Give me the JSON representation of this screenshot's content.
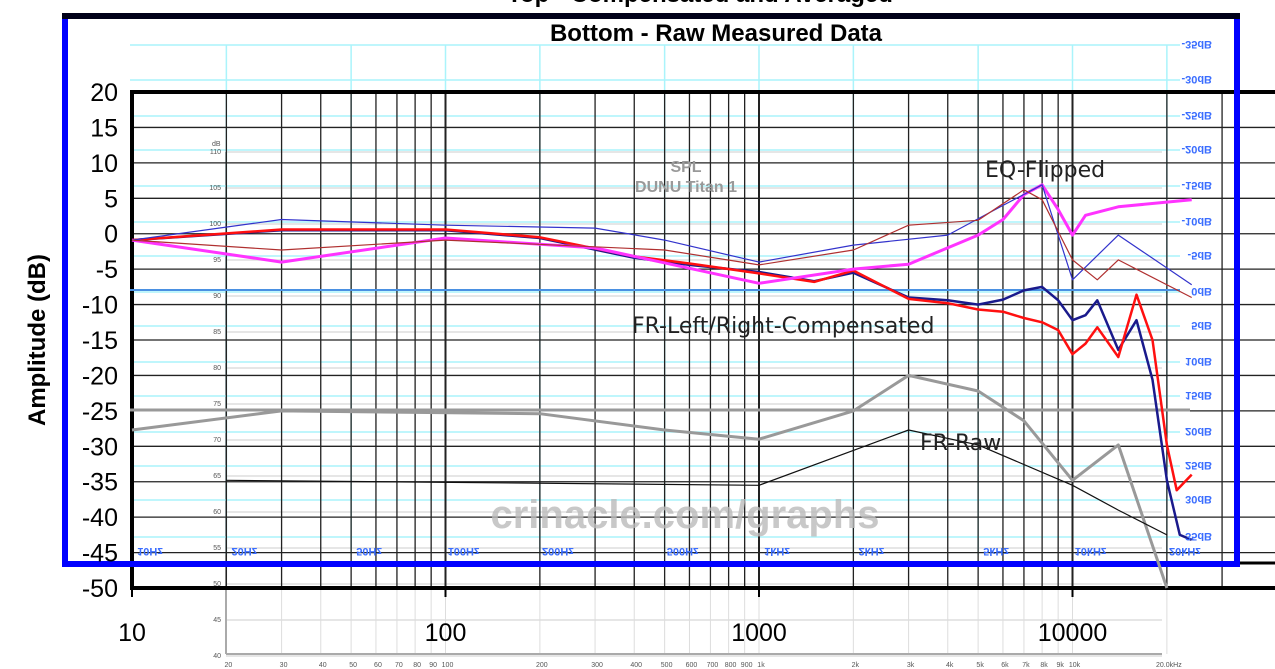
{
  "chart_data": {
    "type": "line",
    "title_lines": [
      "Top - Compensated and Averaged",
      "Bottom - Raw Measured Data"
    ],
    "xlabel": "",
    "ylabel": "Amplitude (dB)",
    "x_scale": "log",
    "xlim": [
      10,
      25000
    ],
    "ylim": [
      -50,
      20
    ],
    "x_ticks": [
      "10",
      "100",
      "1000",
      "10000"
    ],
    "y_ticks": [
      "20",
      "15",
      "10",
      "5",
      "0",
      "-5",
      "-10",
      "-15",
      "-20",
      "-25",
      "-30",
      "-35",
      "-40",
      "-45",
      "-50"
    ],
    "grid": true,
    "annotations": [
      "EQ-Flipped",
      "FR-Left/Right-Compensated",
      "FR-Raw"
    ],
    "watermark": "crinacle.com/graphs",
    "inset_chart": {
      "title": "SPL",
      "subtitle": "DUNU Titan 1",
      "y_unit": "dB",
      "y_ticks": [
        "110",
        "105",
        "100",
        "95",
        "90",
        "85",
        "80",
        "75",
        "70",
        "65",
        "60",
        "55",
        "50",
        "45",
        "40"
      ],
      "x_ticks": [
        "20",
        "30",
        "40",
        "50",
        "60",
        "70",
        "80",
        "90",
        "100",
        "200",
        "300",
        "400",
        "500",
        "600",
        "700",
        "800",
        "900",
        "1k",
        "2k",
        "3k",
        "4k",
        "5k",
        "6k",
        "7k",
        "8k",
        "9k",
        "10k",
        "20.0kHz"
      ]
    },
    "overlay_labels": {
      "freq": [
        "10Hz",
        "20Hz",
        "50Hz",
        "100Hz",
        "200Hz",
        "500Hz",
        "1kHz",
        "2kHz",
        "5kHz",
        "10kHz",
        "20kHz"
      ],
      "db": [
        "-35dB",
        "-30dB",
        "-25dB",
        "-20dB",
        "-15dB",
        "-10dB",
        "-5dB",
        "0dB",
        "5dB",
        "10dB",
        "15dB",
        "20dB",
        "25dB",
        "30dB",
        "35dB"
      ]
    },
    "series": [
      {
        "color": "#1a1a8c",
        "width": 2.5,
        "x": [
          10,
          30,
          100,
          200,
          400,
          600,
          1000,
          1500,
          2000,
          3000,
          4000,
          5000,
          6000,
          7000,
          8000,
          9000,
          10000,
          11000,
          12000,
          14000,
          16000,
          18000,
          20000,
          22000,
          24000
        ],
        "y": [
          -0.9,
          0.5,
          0.5,
          -0.6,
          -3.4,
          -4.4,
          -5.4,
          -6.7,
          -5.5,
          -9,
          -9.4,
          -10,
          -9.3,
          -8,
          -7.5,
          -9.4,
          -12.2,
          -11.5,
          -9.4,
          -16.4,
          -12.2,
          -20.6,
          -34.8,
          -42.5,
          -43.2
        ]
      },
      {
        "color": "#ff1010",
        "width": 2.5,
        "x": [
          10,
          30,
          100,
          200,
          400,
          600,
          1000,
          1500,
          2000,
          3000,
          4000,
          5000,
          6000,
          7000,
          8000,
          9000,
          10000,
          11000,
          12000,
          14000,
          16000,
          18000,
          20000,
          21500,
          24000
        ],
        "y": [
          -0.9,
          0.6,
          0.6,
          -0.5,
          -3.2,
          -4.2,
          -5.6,
          -6.8,
          -5.2,
          -9.2,
          -9.8,
          -10.7,
          -11,
          -11.9,
          -12.5,
          -13.6,
          -17,
          -15.5,
          -13.2,
          -17.4,
          -8.6,
          -15,
          -29.8,
          -36.2,
          -34
        ]
      },
      {
        "color": "#ff33ff",
        "width": 3,
        "x": [
          10,
          30,
          100,
          300,
          1000,
          2000,
          3000,
          5000,
          6000,
          7000,
          8000,
          9000,
          10000,
          11000,
          14000,
          24000
        ],
        "y": [
          -0.9,
          -4,
          -0.6,
          -2,
          -7,
          -5,
          -4.3,
          -0.2,
          2,
          5.5,
          6.9,
          3.4,
          -0.2,
          2.6,
          3.8,
          4.8
        ]
      },
      {
        "color": "#3333cc",
        "width": 1.2,
        "x": [
          10,
          30,
          100,
          300,
          500,
          1000,
          2000,
          4000,
          6000,
          8000,
          10000,
          14000,
          24000
        ],
        "y": [
          -0.9,
          2,
          1.2,
          0.8,
          -0.9,
          -4,
          -1.6,
          -0.2,
          4,
          6.9,
          -6.5,
          -0.2,
          -7.2
        ]
      },
      {
        "color": "#b03030",
        "width": 1.2,
        "x": [
          10,
          30,
          100,
          500,
          1000,
          2000,
          3000,
          5000,
          7000,
          8000,
          10000,
          12000,
          14000,
          24000
        ],
        "y": [
          -0.9,
          -2.3,
          -0.9,
          -2.3,
          -4.4,
          -2.3,
          1.2,
          1.9,
          6.2,
          4.8,
          -3.7,
          -6.5,
          -3.7,
          -9
        ]
      },
      {
        "color": "#999999",
        "width": 3,
        "x": [
          10,
          30,
          200,
          500,
          1000,
          2000,
          3000,
          5000,
          7000,
          10000,
          14000,
          20000
        ],
        "y": [
          -27.7,
          -25,
          -25.4,
          -27.7,
          -29,
          -25,
          -20,
          -22.2,
          -26.4,
          -34.8,
          -29.8,
          -50
        ]
      },
      {
        "color": "#111111",
        "width": 1.2,
        "x": [
          20,
          1000,
          3000,
          5000,
          10000,
          14000,
          20000
        ],
        "y": [
          -34.8,
          -35.5,
          -27.7,
          -29.8,
          -35.5,
          -39,
          -42.5
        ]
      }
    ]
  }
}
